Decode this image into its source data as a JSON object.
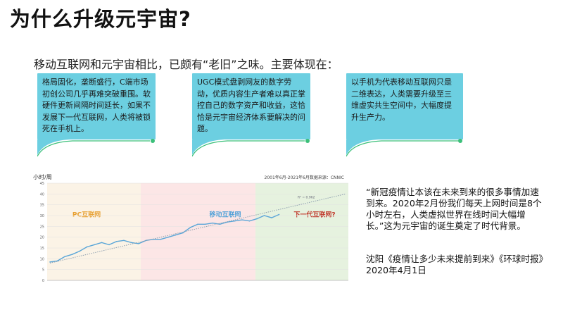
{
  "slide": {
    "title": "为什么升级元宇宙?",
    "intro": "移动互联网和元宇宙相比，已颇有“老旧”之味。主要体现在：",
    "cards": [
      {
        "text": "格局固化，垄断盛行，C端市场初创公司几乎再难突破重围。软硬件更新间隔时间延长，如果不发展下一代互联网，人类将被锁死在手机上。"
      },
      {
        "text": "UGC模式盘剥网友的数字劳动，优质内容生产者难以真正掌控自己的数字资产和收益，这恰恰是元宇宙经济体系要解决的问题。"
      },
      {
        "text": "以手机为代表移动互联网只是二维表达，人类需要升级至三维虚实共生空间中，大幅度提升生产力。"
      }
    ],
    "quote": "“新冠疫情让本该在未来到来的很多事情加速到来。2020年2月份我们每天上网时间是8个小时左右，人类虚拟世界在线时间大幅增长。”这为元宇宙的诞生奠定了时代背景。",
    "source": "沈阳《疫情让多少未来提前到来》《环球时报》2020年4月1日",
    "accent": "#6ccfe1",
    "dot_color": "#3cc07a"
  },
  "chart_data": {
    "type": "line",
    "ylabel": "小时/周",
    "note": "2001年6月-2021年6月数据来源：CNNIC",
    "ylim": [
      0,
      45
    ],
    "yticks": [
      0,
      5,
      10,
      15,
      20,
      25,
      30,
      35,
      40,
      45
    ],
    "regions": [
      {
        "label": "PC互联网",
        "color": "#fbf3e6",
        "label_color": "#e8a030"
      },
      {
        "label": "移动互联网",
        "color": "#fce6e6",
        "label_color": "#4fa0d8"
      },
      {
        "label": "下一代互联网?",
        "color": "#e6f2df",
        "label_color": "#c0392b"
      }
    ],
    "r2_label": "R² = 0.962",
    "series": [
      {
        "values": [
          8.5,
          9.0,
          11.0,
          12.0,
          13.5,
          15.5,
          16.5,
          17.5,
          16.5,
          18.0,
          18.5,
          17.5,
          17.0,
          18.5,
          19.0,
          19.0,
          20.0,
          21.0,
          22.0,
          24.5,
          26.0,
          26.0,
          26.5,
          26.0,
          27.0,
          27.5,
          28.0,
          27.5,
          28.5,
          30.0,
          29.0,
          30.5
        ]
      }
    ],
    "trend": [
      8.0,
      40.0
    ]
  }
}
